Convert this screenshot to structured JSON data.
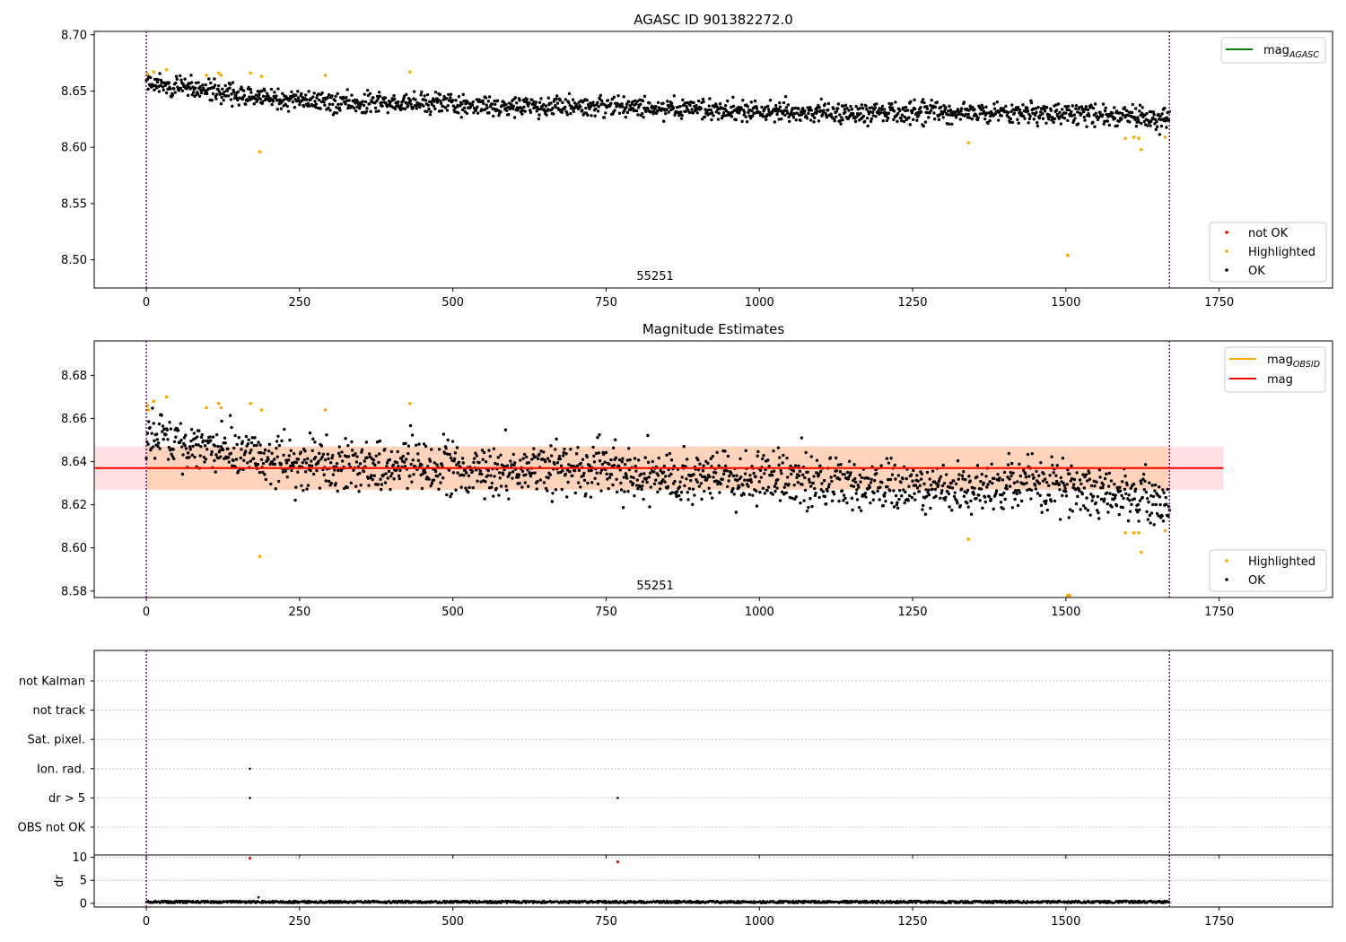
{
  "chart_data": [
    {
      "type": "scatter",
      "title": "AGASC ID 901382272.0",
      "annotation": "55251",
      "xlim": [
        -85,
        1935
      ],
      "ylim": [
        8.475,
        8.703
      ],
      "xticks": [
        0,
        250,
        500,
        750,
        1000,
        1250,
        1500,
        1750
      ],
      "yticks": [
        8.5,
        8.55,
        8.6,
        8.65,
        8.7
      ],
      "ytick_labels": [
        "8.50",
        "8.55",
        "8.60",
        "8.65",
        "8.70"
      ],
      "vlines": [
        0,
        1669
      ],
      "line_legend": [
        {
          "label": "mag",
          "sub": "AGASC",
          "color": "#008000"
        }
      ],
      "point_legend": [
        {
          "label": "not OK",
          "color": "#ff0000"
        },
        {
          "label": "Highlighted",
          "color": "#ffa500"
        },
        {
          "label": "OK",
          "color": "#000000"
        }
      ],
      "ok_trend": {
        "x": [
          0,
          100,
          250,
          500,
          750,
          1000,
          1250,
          1500,
          1669
        ],
        "y": [
          8.658,
          8.65,
          8.641,
          8.638,
          8.636,
          8.632,
          8.63,
          8.63,
          8.624
        ]
      },
      "highlighted": {
        "x": [
          2,
          12,
          33,
          98,
          118,
          122,
          170,
          185,
          188,
          292,
          430,
          1341,
          1503,
          1597,
          1611,
          1619,
          1623,
          1662
        ],
        "y": [
          8.665,
          8.667,
          8.669,
          8.664,
          8.666,
          8.664,
          8.666,
          8.596,
          8.663,
          8.664,
          8.667,
          8.604,
          8.504,
          8.608,
          8.609,
          8.608,
          8.598,
          8.609
        ]
      }
    },
    {
      "type": "scatter",
      "title": "Magnitude Estimates",
      "annotation": "55251",
      "xlim": [
        -85,
        1935
      ],
      "ylim": [
        8.577,
        8.696
      ],
      "xticks": [
        0,
        250,
        500,
        750,
        1000,
        1250,
        1500,
        1750
      ],
      "yticks": [
        8.58,
        8.6,
        8.62,
        8.64,
        8.66,
        8.68
      ],
      "ytick_labels": [
        "8.58",
        "8.60",
        "8.62",
        "8.64",
        "8.66",
        "8.68"
      ],
      "vlines": [
        0,
        1669
      ],
      "mag_line": 8.637,
      "mag_band": [
        8.627,
        8.647
      ],
      "band_xrange": [
        -85,
        1757
      ],
      "obsid_band_xrange": [
        0,
        1669
      ],
      "line_legend": [
        {
          "label": "mag",
          "sub": "OBSID",
          "color": "#ffa500"
        },
        {
          "label": "mag",
          "sub": "",
          "color": "#ff0000"
        }
      ],
      "point_legend": [
        {
          "label": "Highlighted",
          "color": "#ffa500"
        },
        {
          "label": "OK",
          "color": "#000000"
        }
      ],
      "ok_trend": {
        "x": [
          0,
          100,
          250,
          500,
          750,
          1000,
          1250,
          1500,
          1669
        ],
        "y": [
          8.655,
          8.646,
          8.64,
          8.637,
          8.635,
          8.632,
          8.628,
          8.628,
          8.62
        ]
      },
      "highlighted": {
        "x": [
          2,
          3,
          12,
          33,
          98,
          118,
          122,
          170,
          185,
          188,
          292,
          430,
          1341,
          1503,
          1506,
          1597,
          1611,
          1619,
          1623,
          1662
        ],
        "y": [
          8.666,
          8.664,
          8.668,
          8.67,
          8.665,
          8.667,
          8.665,
          8.667,
          8.596,
          8.664,
          8.664,
          8.667,
          8.604,
          8.578,
          8.578,
          8.607,
          8.607,
          8.607,
          8.598,
          8.608
        ]
      }
    },
    {
      "type": "scatter",
      "title": "",
      "xlim": [
        -85,
        1935
      ],
      "categories": [
        "not Kalman",
        "not track",
        "Sat. pixel.",
        "Ion. rad.",
        "dr > 5",
        "OBS not OK"
      ],
      "vlines": [
        0,
        1669
      ],
      "flags": [
        {
          "category": "Ion. rad.",
          "x": [
            169
          ]
        },
        {
          "category": "dr > 5",
          "x": [
            169,
            769
          ]
        }
      ]
    },
    {
      "type": "scatter",
      "title": "",
      "ylabel": "dr",
      "xlim": [
        -85,
        1935
      ],
      "ylim": [
        -0.8,
        10.5
      ],
      "xticks": [
        0,
        250,
        500,
        750,
        1000,
        1250,
        1500,
        1750
      ],
      "yticks": [
        0,
        5,
        10
      ],
      "ytick_labels": [
        "0",
        "5",
        "10"
      ],
      "vlines": [
        0,
        1669
      ],
      "outliers_red": {
        "x": [
          169,
          769
        ],
        "y": [
          9.8,
          9.0
        ]
      },
      "outliers_black": {
        "x": [
          183
        ],
        "y": [
          1.3
        ]
      },
      "baseline": {
        "y_min": 0.05,
        "y_max": 0.55
      }
    }
  ]
}
